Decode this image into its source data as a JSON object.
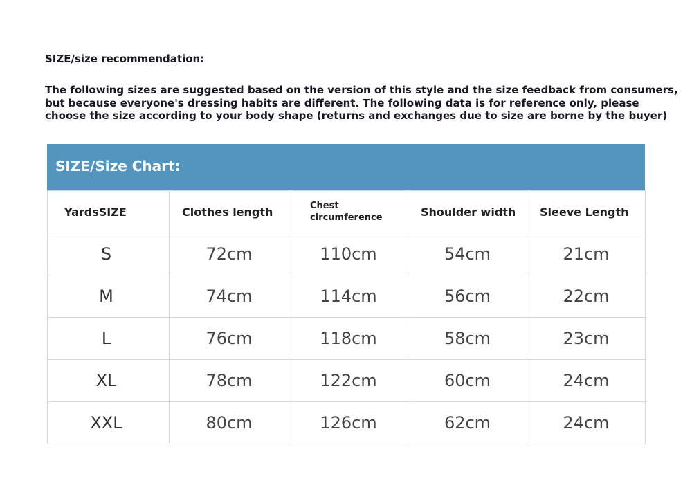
{
  "title": "SIZE/size recommendation:",
  "paragraph": [
    "The following sizes are suggested based on the version of this style and the size feedback from consumers,",
    "but because everyone's dressing habits are different. The following data is for reference only, please",
    "choose the size according to your body shape (returns and exchanges due to size are borne by the buyer)"
  ],
  "chart_title": "SIZE/Size Chart:",
  "accent_color": "#5495bd",
  "headers": [
    "YardsSIZE",
    "Clothes length",
    "Chest circumference",
    "Shoulder width",
    "Sleeve Length"
  ],
  "rows": [
    [
      "S",
      "72cm",
      "110cm",
      "54cm",
      "21cm"
    ],
    [
      "M",
      "74cm",
      "114cm",
      "56cm",
      "22cm"
    ],
    [
      "L",
      "76cm",
      "118cm",
      "58cm",
      "23cm"
    ],
    [
      "XL",
      "78cm",
      "122cm",
      "60cm",
      "24cm"
    ],
    [
      "XXL",
      "80cm",
      "126cm",
      "62cm",
      "24cm"
    ]
  ]
}
